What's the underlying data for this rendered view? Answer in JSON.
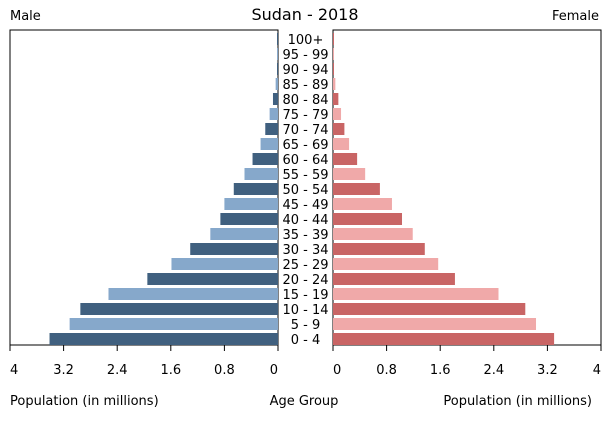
{
  "chart_data": {
    "type": "bar",
    "title": "Sudan - 2018",
    "left_header": "Male",
    "right_header": "Female",
    "left_xlabel": "Population (in millions)",
    "center_label": "Age Group",
    "right_xlabel": "Population (in millions)",
    "xlim": [
      0,
      4
    ],
    "ticks": [
      0,
      0.8,
      1.6,
      2.4,
      3.2,
      4
    ],
    "tick_labels": [
      "0",
      "0.8",
      "1.6",
      "2.4",
      "3.2",
      "4"
    ],
    "categories": [
      "100+",
      "95 - 99",
      "90 - 94",
      "85 - 89",
      "80 - 84",
      "75 - 79",
      "70 - 74",
      "65 - 69",
      "60 - 64",
      "55 - 59",
      "50 - 54",
      "45 - 49",
      "40 - 44",
      "35 - 39",
      "30 - 34",
      "25 - 29",
      "20 - 24",
      "15 - 19",
      "10 - 14",
      "5 - 9",
      "0 - 4"
    ],
    "series": [
      {
        "name": "Male",
        "values": [
          0.001,
          0.004,
          0.012,
          0.035,
          0.075,
          0.125,
          0.19,
          0.26,
          0.38,
          0.5,
          0.66,
          0.8,
          0.86,
          1.01,
          1.31,
          1.59,
          1.95,
          2.53,
          2.95,
          3.11,
          3.41
        ]
      },
      {
        "name": "Female",
        "values": [
          0.001,
          0.004,
          0.012,
          0.035,
          0.08,
          0.12,
          0.17,
          0.24,
          0.36,
          0.48,
          0.7,
          0.88,
          1.03,
          1.19,
          1.37,
          1.57,
          1.82,
          2.47,
          2.87,
          3.03,
          3.3
        ]
      }
    ],
    "colors": {
      "male_dark": "#40607f",
      "male_light": "#86a8cb",
      "female_dark": "#c96565",
      "female_light": "#f0a9a9"
    }
  }
}
